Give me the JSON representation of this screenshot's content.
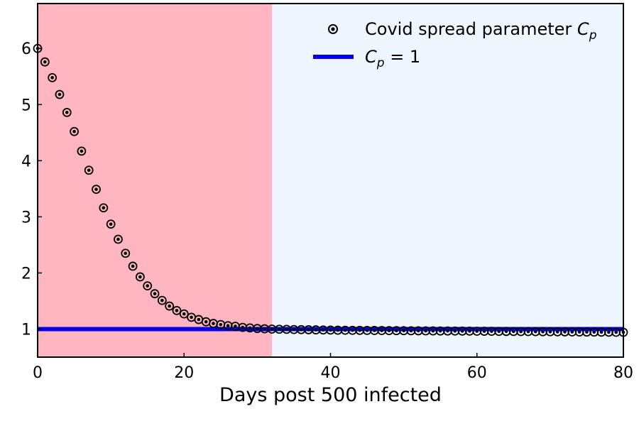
{
  "chart_data": {
    "type": "scatter",
    "title": "",
    "xlabel": "Days post 500 infected",
    "ylabel": "",
    "xlim": [
      0,
      80
    ],
    "ylim": [
      0.5,
      6.8
    ],
    "xticks": [
      0,
      20,
      40,
      60,
      80
    ],
    "yticks": [
      1,
      2,
      3,
      4,
      5,
      6
    ],
    "grid": false,
    "legend_position": "top-right",
    "regions": [
      {
        "x_start": 0,
        "x_end": 32,
        "color": "#ffb6c1"
      },
      {
        "x_start": 32,
        "x_end": 80,
        "color": "#eef6ff"
      }
    ],
    "series": [
      {
        "name": "Covid spread parameter C_p",
        "kind": "scatter",
        "marker": "circled-dot",
        "color": "#000000",
        "x": [
          0,
          1,
          2,
          3,
          4,
          5,
          6,
          7,
          8,
          9,
          10,
          11,
          12,
          13,
          14,
          15,
          16,
          17,
          18,
          19,
          20,
          21,
          22,
          23,
          24,
          25,
          26,
          27,
          28,
          29,
          30,
          31,
          32,
          33,
          34,
          35,
          36,
          37,
          38,
          39,
          40,
          41,
          42,
          43,
          44,
          45,
          46,
          47,
          48,
          49,
          50,
          51,
          52,
          53,
          54,
          55,
          56,
          57,
          58,
          59,
          60,
          61,
          62,
          63,
          64,
          65,
          66,
          67,
          68,
          69,
          70,
          71,
          72,
          73,
          74,
          75,
          76,
          77,
          78,
          79,
          80
        ],
        "y": [
          6.0,
          5.76,
          5.48,
          5.18,
          4.86,
          4.52,
          4.17,
          3.83,
          3.49,
          3.16,
          2.87,
          2.6,
          2.35,
          2.12,
          1.93,
          1.77,
          1.63,
          1.51,
          1.41,
          1.33,
          1.27,
          1.21,
          1.17,
          1.13,
          1.1,
          1.08,
          1.06,
          1.05,
          1.03,
          1.02,
          1.01,
          1.005,
          1.0,
          0.997,
          0.995,
          0.992,
          0.99,
          0.988,
          0.986,
          0.984,
          0.982,
          0.98,
          0.979,
          0.978,
          0.977,
          0.976,
          0.975,
          0.974,
          0.973,
          0.972,
          0.971,
          0.97,
          0.969,
          0.968,
          0.967,
          0.966,
          0.966,
          0.965,
          0.964,
          0.963,
          0.962,
          0.961,
          0.96,
          0.959,
          0.958,
          0.957,
          0.956,
          0.955,
          0.954,
          0.953,
          0.952,
          0.951,
          0.95,
          0.949,
          0.948,
          0.947,
          0.946,
          0.945,
          0.944,
          0.943,
          0.942
        ]
      },
      {
        "name": "C_p = 1",
        "kind": "hline",
        "y": 1,
        "color": "#0000ee"
      }
    ]
  }
}
